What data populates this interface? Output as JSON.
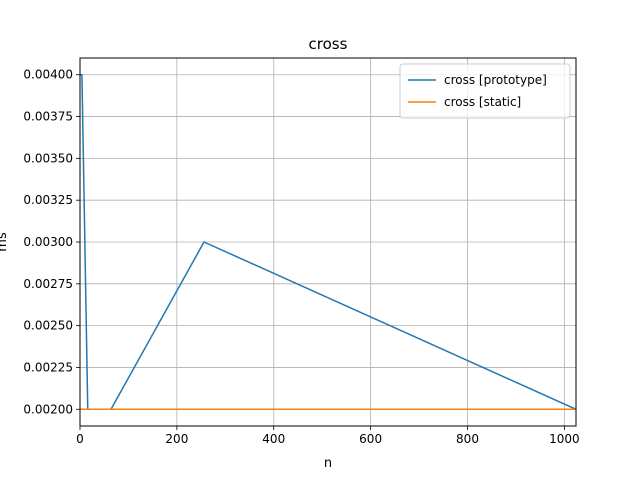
{
  "chart_data": {
    "type": "line",
    "title": "cross",
    "xlabel": "n",
    "ylabel": "ms",
    "xlim": [
      0,
      1024
    ],
    "ylim": [
      0.0019,
      0.0041
    ],
    "grid": true,
    "legend_position": "top-right",
    "x_ticks": [
      0,
      200,
      400,
      600,
      800,
      1000
    ],
    "x_tick_labels": [
      "0",
      "200",
      "400",
      "600",
      "800",
      "1000"
    ],
    "y_ticks": [
      0.002,
      0.00225,
      0.0025,
      0.00275,
      0.003,
      0.00325,
      0.0035,
      0.00375,
      0.004
    ],
    "y_tick_labels": [
      "0.00200",
      "0.00225",
      "0.00250",
      "0.00275",
      "0.00300",
      "0.00325",
      "0.00350",
      "0.00375",
      "0.00400"
    ],
    "series": [
      {
        "name": "cross [prototype]",
        "color": "#1f77b4",
        "x": [
          1,
          4,
          16,
          64,
          256,
          1024
        ],
        "y": [
          0.004,
          0.004,
          0.002,
          0.002,
          0.003,
          0.002
        ]
      },
      {
        "name": "cross [static]",
        "color": "#ff7f0e",
        "x": [
          1,
          4,
          16,
          64,
          256,
          1024
        ],
        "y": [
          0.002,
          0.002,
          0.002,
          0.002,
          0.002,
          0.002
        ]
      }
    ]
  }
}
